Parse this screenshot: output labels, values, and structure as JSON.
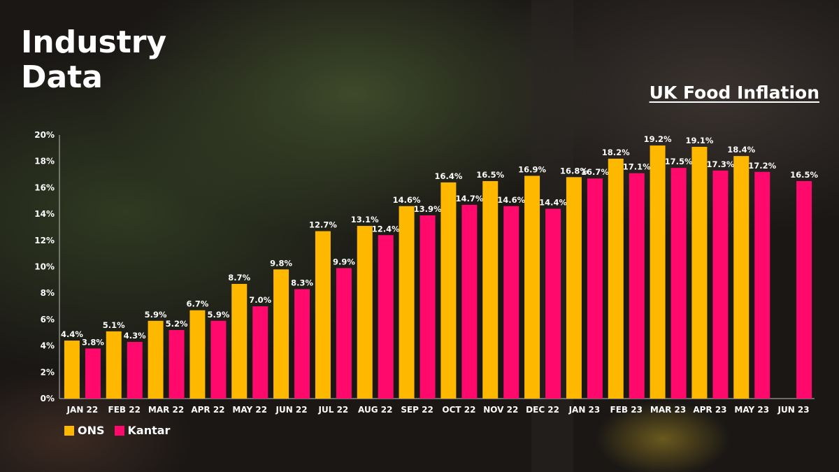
{
  "header": {
    "title_line1": "Industry",
    "title_line2": "Data"
  },
  "colors": {
    "ons": "#FFB800",
    "kantar": "#FF0A6C",
    "text": "#FFFFFF"
  },
  "chart_data": {
    "type": "bar",
    "title": "UK Food Inflation",
    "xlabel": "",
    "ylabel": "",
    "ylim": [
      0,
      20
    ],
    "yticks": [
      "0%",
      "2%",
      "4%",
      "6%",
      "8%",
      "10%",
      "12%",
      "14%",
      "16%",
      "18%",
      "20%"
    ],
    "grid": false,
    "legend_position": "bottom-left",
    "categories": [
      "JAN 22",
      "FEB 22",
      "MAR 22",
      "APR 22",
      "MAY 22",
      "JUN 22",
      "JUL 22",
      "AUG 22",
      "SEP 22",
      "OCT 22",
      "NOV 22",
      "DEC 22",
      "JAN 23",
      "FEB 23",
      "MAR 23",
      "APR 23",
      "MAY 23",
      "JUN 23"
    ],
    "series": [
      {
        "name": "ONS",
        "values": [
          4.4,
          5.1,
          5.9,
          6.7,
          8.7,
          9.8,
          12.7,
          13.1,
          14.6,
          16.4,
          16.5,
          16.9,
          16.8,
          18.2,
          19.2,
          19.1,
          18.4,
          null
        ]
      },
      {
        "name": "Kantar",
        "values": [
          3.8,
          4.3,
          5.2,
          5.9,
          7.0,
          8.3,
          9.9,
          12.4,
          13.9,
          14.7,
          14.6,
          14.4,
          16.7,
          17.1,
          17.5,
          17.3,
          17.2,
          16.5
        ]
      }
    ]
  }
}
